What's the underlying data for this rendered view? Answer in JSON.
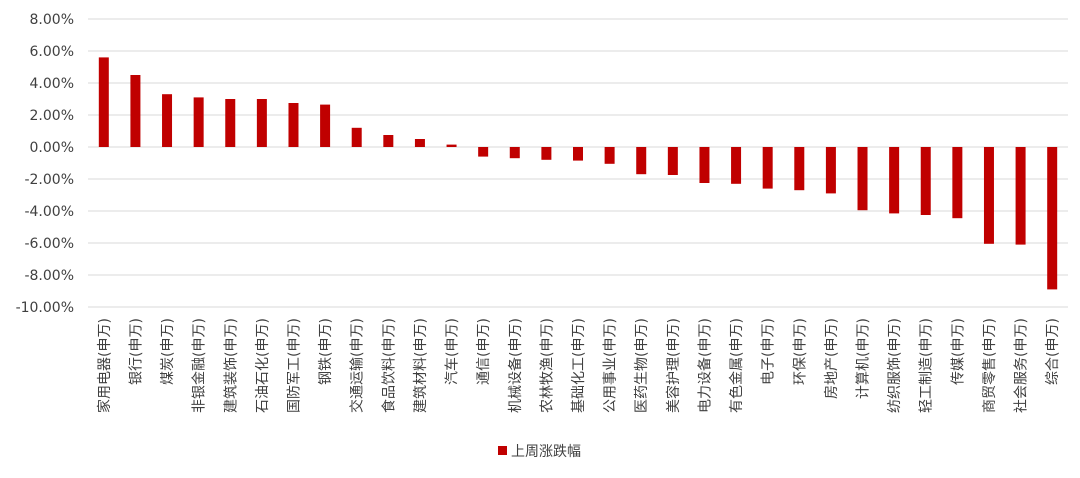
{
  "chart_data": {
    "type": "bar",
    "categories": [
      "家用电器(申万)",
      "银行(申万)",
      "煤炭(申万)",
      "非银金融(申万)",
      "建筑装饰(申万)",
      "石油石化(申万)",
      "国防军工(申万)",
      "钢铁(申万)",
      "交通运输(申万)",
      "食品饮料(申万)",
      "建筑材料(申万)",
      "汽车(申万)",
      "通信(申万)",
      "机械设备(申万)",
      "农林牧渔(申万)",
      "基础化工(申万)",
      "公用事业(申万)",
      "医药生物(申万)",
      "美容护理(申万)",
      "电力设备(申万)",
      "有色金属(申万)",
      "电子(申万)",
      "环保(申万)",
      "房地产(申万)",
      "计算机(申万)",
      "纺织服饰(申万)",
      "轻工制造(申万)",
      "传媒(申万)",
      "商贸零售(申万)",
      "社会服务(申万)",
      "综合(申万)"
    ],
    "series": [
      {
        "name": "上周涨跌幅",
        "values": [
          5.6,
          4.5,
          3.3,
          3.1,
          3.0,
          3.0,
          2.75,
          2.65,
          1.2,
          0.75,
          0.5,
          0.15,
          -0.6,
          -0.7,
          -0.8,
          -0.85,
          -1.05,
          -1.7,
          -1.75,
          -2.25,
          -2.3,
          -2.6,
          -2.7,
          -2.9,
          -3.95,
          -4.15,
          -4.25,
          -4.45,
          -6.05,
          -6.1,
          -8.9
        ]
      }
    ],
    "ylim": [
      -10,
      8
    ],
    "ytick_step": 2,
    "ytick_labels": [
      "8.00%",
      "6.00%",
      "4.00%",
      "2.00%",
      "0.00%",
      "-2.00%",
      "-4.00%",
      "-6.00%",
      "-8.00%",
      "-10.00%"
    ],
    "legend_position": "bottom",
    "grid": true,
    "colors": {
      "bar": "#C00000",
      "grid": "#D9D9D9",
      "text": "#404040"
    }
  }
}
